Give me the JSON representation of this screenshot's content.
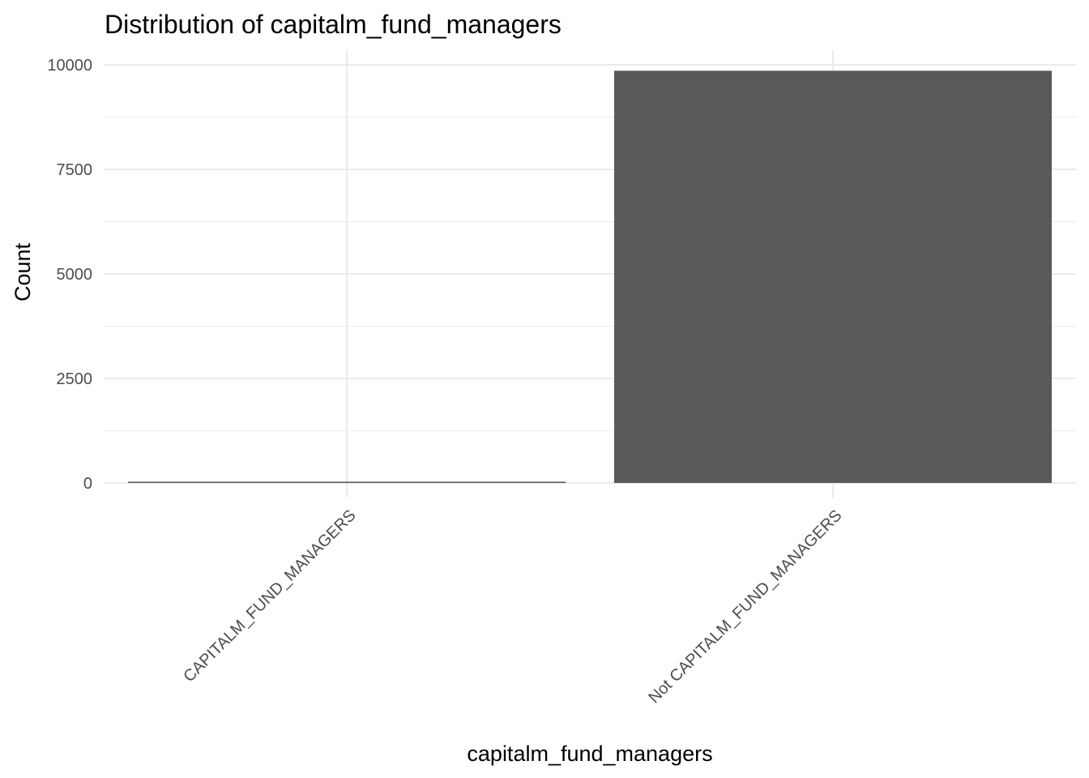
{
  "chart_data": {
    "type": "bar",
    "title": "Distribution of capitalm_fund_managers",
    "xlabel": "capitalm_fund_managers",
    "ylabel": "Count",
    "categories": [
      "CAPITALM_FUND_MANAGERS",
      "Not CAPITALM_FUND_MANAGERS"
    ],
    "values": [
      30,
      9860
    ],
    "ylim": [
      -350,
      10350
    ],
    "yticks": [
      0,
      2500,
      5000,
      7500,
      10000
    ],
    "ytick_labels": [
      "0",
      "2500",
      "5000",
      "7500",
      "10000"
    ],
    "grid": true,
    "legend": "none",
    "bar_color": "#595959",
    "grid_color": "#ebebeb"
  }
}
